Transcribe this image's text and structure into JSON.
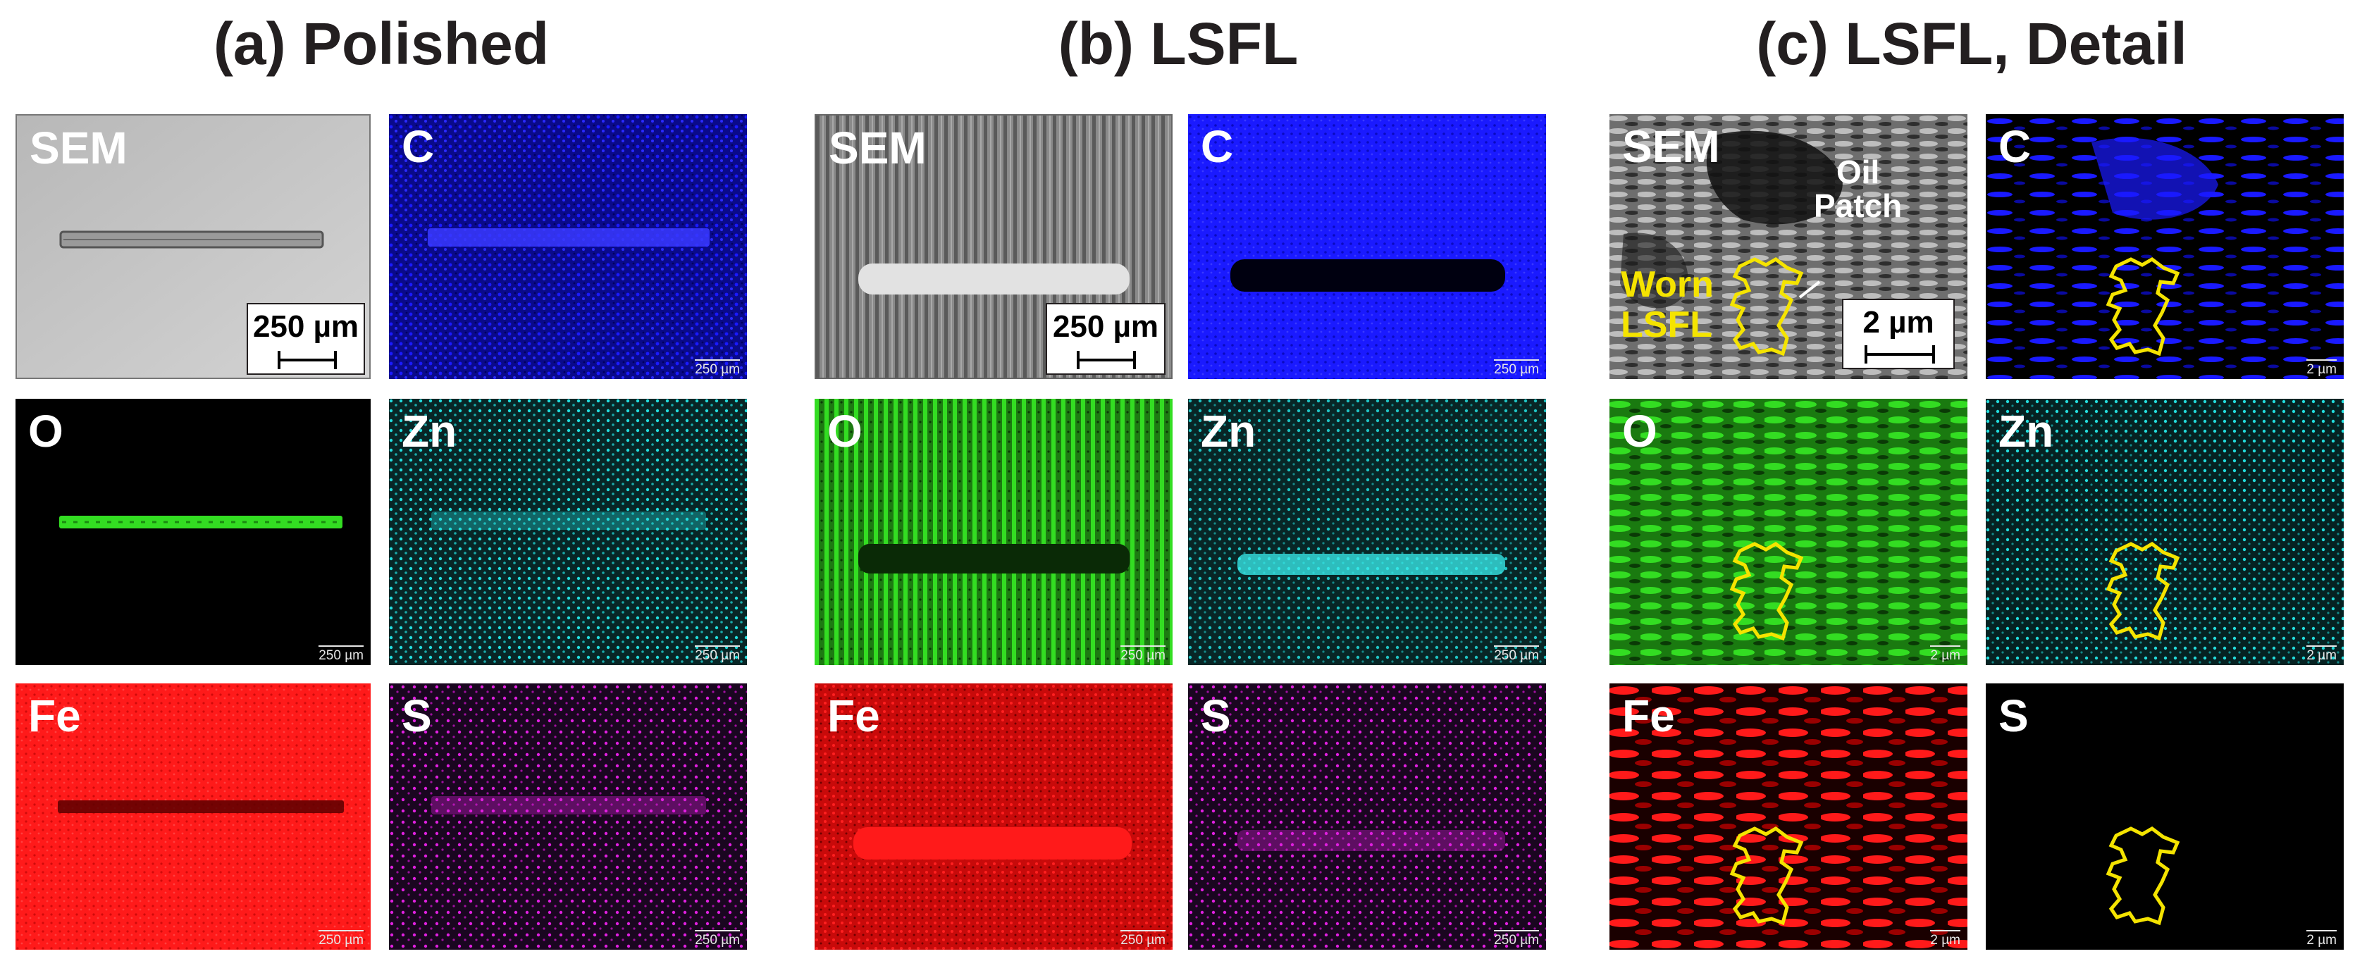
{
  "titles": {
    "a": "(a) Polished",
    "b": "(b) LSFL",
    "c": "(c) LSFL, Detail"
  },
  "labels": {
    "sem": "SEM",
    "c": "C",
    "o": "O",
    "zn": "Zn",
    "fe": "Fe",
    "s": "S"
  },
  "scale": {
    "big_250": "250 µm",
    "big_2": "2 µm",
    "small_250": "250 µm",
    "small_2": "2 µm"
  },
  "annotations": {
    "oil_patch_line1": "Oil",
    "oil_patch_line2": "Patch",
    "worn_line1": "Worn",
    "worn_line2": "LSFL"
  },
  "colors": {
    "carbon": "#1a1aff",
    "oxygen": "#33dd22",
    "zinc": "#22dddd",
    "iron": "#ff1a1a",
    "sulfur": "#e020e0",
    "outline": "#f5e400"
  }
}
